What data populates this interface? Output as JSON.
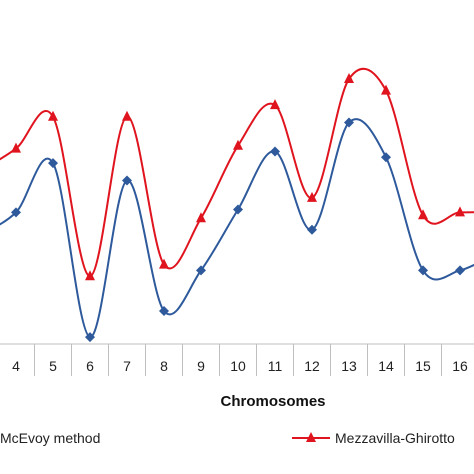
{
  "chart_data": {
    "type": "line",
    "xlabel": "Chromosomes",
    "categories": [
      "4",
      "5",
      "6",
      "7",
      "8",
      "9",
      "10",
      "11",
      "12",
      "13",
      "14",
      "15",
      "16"
    ],
    "x_visible_range": [
      3,
      16.7
    ],
    "y_range": [
      0,
      100
    ],
    "grid": false,
    "legend_position": "bottom",
    "series": [
      {
        "name": "McEvoy method",
        "color": "#2E5A9C",
        "marker": "diamond",
        "leading_value": 36,
        "values": [
          44,
          61,
          1,
          55,
          10,
          24,
          45,
          65,
          38,
          75,
          63,
          24,
          24
        ],
        "trailing_value": 30
      },
      {
        "name": "Mezzavilla-Ghirotto",
        "color": "#E0141E",
        "marker": "triangle",
        "leading_value": 58,
        "values": [
          66,
          77,
          22,
          77,
          26,
          42,
          67,
          81,
          49,
          90,
          86,
          43,
          44
        ],
        "trailing_value": 44
      }
    ]
  }
}
